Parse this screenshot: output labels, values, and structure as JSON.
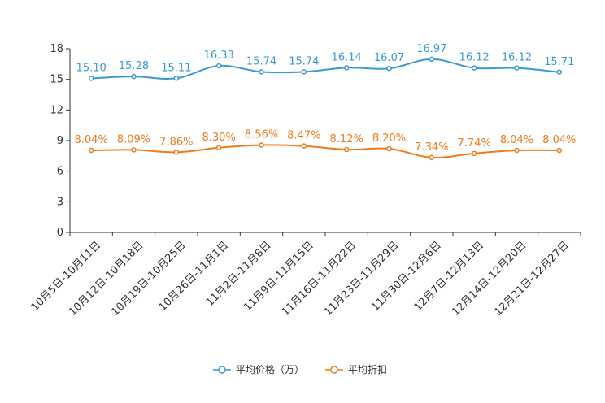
{
  "chart_data": {
    "type": "line",
    "categories": [
      "10月5日-10月11日",
      "10月12日-10月18日",
      "10月19日-10月25日",
      "10月26日-11月1日",
      "11月2日-11月8日",
      "11月9日-11月15日",
      "11月16日-11月22日",
      "11月23日-11月29日",
      "11月30日-12月6日",
      "12月7日-12月13日",
      "12月14日-12月20日",
      "12月21日-12月27日"
    ],
    "series": [
      {
        "name": "平均价格（万）",
        "color": "#3a9ad9",
        "values": [
          15.1,
          15.28,
          15.11,
          16.33,
          15.74,
          15.74,
          16.14,
          16.07,
          16.97,
          16.12,
          16.12,
          15.71
        ],
        "labels": [
          "15.10",
          "15.28",
          "15.11",
          "16.33",
          "15.74",
          "15.74",
          "16.14",
          "16.07",
          "16.97",
          "16.12",
          "16.12",
          "15.71"
        ]
      },
      {
        "name": "平均折扣",
        "color": "#f07b1d",
        "values": [
          8.04,
          8.09,
          7.86,
          8.3,
          8.56,
          8.47,
          8.12,
          8.2,
          7.34,
          7.74,
          8.04,
          8.04
        ],
        "labels": [
          "8.04%",
          "8.09%",
          "7.86%",
          "8.30%",
          "8.56%",
          "8.47%",
          "8.12%",
          "8.20%",
          "7.34%",
          "7.74%",
          "8.04%",
          "8.04%"
        ]
      }
    ],
    "y_ticks": [
      "0",
      "3",
      "6",
      "9",
      "12",
      "15",
      "18"
    ],
    "ylim": [
      0,
      18
    ],
    "title": "",
    "xlabel": "",
    "ylabel": "",
    "legend_position": "bottom-center",
    "grid": false
  }
}
